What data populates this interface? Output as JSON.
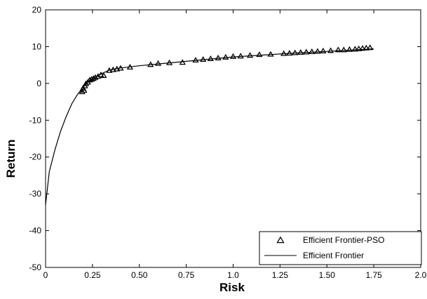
{
  "chart_data": {
    "type": "scatter",
    "title": "",
    "xlabel": "Risk",
    "ylabel": "Return",
    "xlim": [
      0,
      2.0
    ],
    "ylim": [
      -50,
      20
    ],
    "xticks": [
      0,
      0.25,
      0.5,
      0.75,
      1.0,
      1.25,
      1.5,
      1.75,
      2.0
    ],
    "xtick_labels": [
      "0",
      "0.25",
      "0.50",
      "0.75",
      "1.0",
      "1.25",
      "1.50",
      "1.75",
      "2.0"
    ],
    "yticks": [
      -50,
      -40,
      -30,
      -20,
      -10,
      0,
      10,
      20
    ],
    "ytick_labels": [
      "-50",
      "-40",
      "-30",
      "-20",
      "-10",
      "0",
      "10",
      "20"
    ],
    "grid": false,
    "legend_position": "bottom-right",
    "series": [
      {
        "name": "Efficient Frontier-PSO",
        "style": "triangle-markers",
        "color": "#000000",
        "x": [
          0.195,
          0.2,
          0.205,
          0.21,
          0.215,
          0.225,
          0.235,
          0.245,
          0.255,
          0.265,
          0.28,
          0.295,
          0.31,
          0.34,
          0.36,
          0.38,
          0.4,
          0.45,
          0.56,
          0.6,
          0.66,
          0.73,
          0.8,
          0.84,
          0.88,
          0.92,
          0.96,
          1.0,
          1.04,
          1.09,
          1.14,
          1.2,
          1.27,
          1.3,
          1.33,
          1.36,
          1.39,
          1.42,
          1.45,
          1.48,
          1.52,
          1.56,
          1.59,
          1.62,
          1.65,
          1.67,
          1.69,
          1.71,
          1.73
        ],
        "y": [
          -2.4,
          -1.4,
          -2.0,
          -0.8,
          -0.2,
          0.2,
          0.8,
          1.0,
          1.2,
          1.5,
          1.8,
          2.2,
          2.0,
          3.4,
          3.6,
          3.8,
          4.0,
          4.3,
          5.0,
          5.3,
          5.5,
          5.6,
          6.2,
          6.4,
          6.6,
          6.8,
          7.0,
          7.2,
          7.3,
          7.5,
          7.7,
          7.8,
          8.0,
          8.1,
          8.2,
          8.3,
          8.4,
          8.5,
          8.6,
          8.7,
          8.8,
          9.0,
          9.0,
          9.1,
          9.2,
          9.3,
          9.4,
          9.5,
          9.6
        ]
      },
      {
        "name": "Efficient Frontier",
        "style": "line",
        "color": "#000000",
        "x": [
          0.0,
          0.02,
          0.05,
          0.08,
          0.11,
          0.14,
          0.17,
          0.2,
          0.23,
          0.26,
          0.3,
          0.34,
          0.4,
          0.5,
          0.6,
          0.75,
          1.0,
          1.25,
          1.5,
          1.75
        ],
        "y": [
          -33,
          -24,
          -18,
          -13,
          -9,
          -5.5,
          -3,
          -1,
          0.5,
          1.5,
          2.7,
          3.6,
          4.2,
          4.8,
          5.3,
          6.0,
          7.2,
          8.0,
          8.7,
          9.4
        ]
      }
    ]
  }
}
